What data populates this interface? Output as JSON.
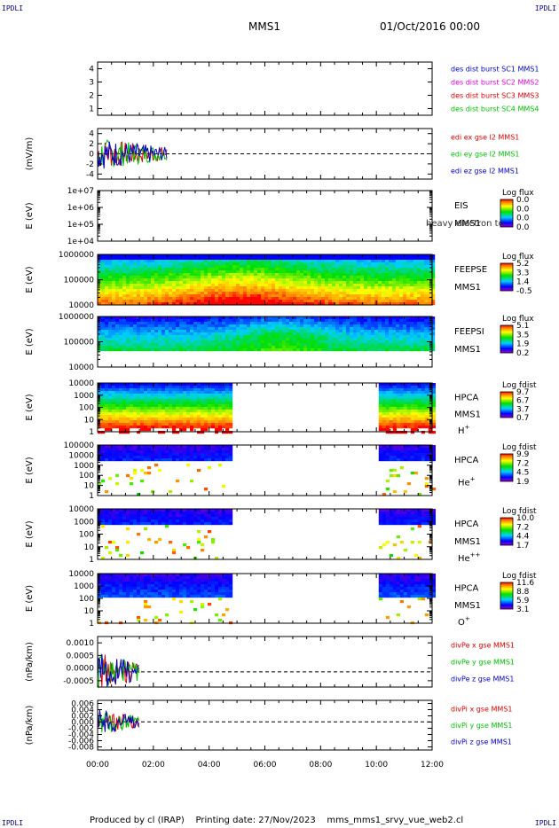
{
  "header": {
    "corner_tl": "IPDLI",
    "corner_tr": "IPDLI",
    "corner_bl": "IPDLI",
    "corner_br": "IPDLI",
    "spacecraft": "MMS1",
    "datetime": "01/Oct/2016 00:00"
  },
  "footer": {
    "produced_by": "Produced by cl (IRAP)",
    "printing_date": "Printing date: 27/Nov/2023",
    "file": "mms_mms1_srvy_vue_web2.cl"
  },
  "colors": {
    "mms1": "#0000c8",
    "mms2": "#e000e0",
    "mms3": "#e00000",
    "mms4": "#00c000",
    "x": "#e00000",
    "y": "#00c000",
    "z": "#0000c8"
  },
  "chart_data": [
    {
      "type": "line",
      "ylim": [
        1,
        4
      ],
      "yticks": [
        "1",
        "2",
        "3",
        "4"
      ],
      "series": [],
      "legend": [
        {
          "text": "des dist burst SC1 MMS1",
          "color": "#0000c8"
        },
        {
          "text": "des dist burst SC2 MMS2",
          "color": "#e000e0"
        },
        {
          "text": "des dist burst SC3 MMS3",
          "color": "#e00000"
        },
        {
          "text": "des dist burst SC4 MMS4",
          "color": "#00c000"
        }
      ]
    },
    {
      "type": "line",
      "ylabel": "(mV/m)",
      "ylim": [
        -4,
        4
      ],
      "yticks": [
        "-4",
        "-2",
        "0",
        "2",
        "4"
      ],
      "x_data_range": [
        "00:00",
        "02:30"
      ],
      "legend": [
        {
          "text": "edi ex gse l2 MMS1",
          "color": "#e00000"
        },
        {
          "text": "edi ey gse l2 MMS1",
          "color": "#00c000"
        },
        {
          "text": "edi ez gse l2 MMS1",
          "color": "#0000c8"
        }
      ]
    },
    {
      "type": "heatmap",
      "ylabel": "E (eV)",
      "yticks": [
        "1e+04",
        "1e+05",
        "1e+06",
        "1e+07"
      ],
      "instrument": "EIS",
      "spacecraft": "MMS1",
      "overlay_text": "heavy electron to",
      "colorbar": {
        "label": "Log flux",
        "ticks": [
          "0.0",
          "0.0",
          "0.0",
          "0.0"
        ]
      }
    },
    {
      "type": "heatmap",
      "ylabel": "E (eV)",
      "yticks": [
        "10000",
        "100000",
        "1000000"
      ],
      "instrument": "FEEPSE",
      "spacecraft": "MMS1",
      "colorbar": {
        "label": "Log flux",
        "ticks": [
          "5.2",
          "3.3",
          "1.4",
          "-0.5"
        ]
      }
    },
    {
      "type": "heatmap",
      "ylabel": "E (eV)",
      "yticks": [
        "10000",
        "100000",
        "1000000"
      ],
      "instrument": "FEEPSI",
      "spacecraft": "MMS1",
      "colorbar": {
        "label": "Log flux",
        "ticks": [
          "5.1",
          "3.5",
          "1.9",
          "0.2"
        ]
      }
    },
    {
      "type": "heatmap",
      "ylabel": "E (eV)",
      "yticks": [
        "1",
        "10",
        "100",
        "1000",
        "10000"
      ],
      "instrument": "HPCA",
      "spacecraft": "MMS1",
      "species": "H",
      "species_sup": "+",
      "data_intervals": [
        [
          "00:00",
          "04:50"
        ],
        [
          "10:05",
          "12:00"
        ]
      ],
      "colorbar": {
        "label": "Log fdist",
        "ticks": [
          "9.7",
          "6.7",
          "3.7",
          "0.7"
        ]
      }
    },
    {
      "type": "heatmap",
      "ylabel": "E (eV)",
      "yticks": [
        "1",
        "10",
        "100",
        "1000",
        "10000",
        "100000"
      ],
      "instrument": "HPCA",
      "species": "He",
      "species_sup": "+",
      "data_intervals": [
        [
          "00:00",
          "04:50"
        ],
        [
          "10:05",
          "12:00"
        ]
      ],
      "colorbar": {
        "label": "Log fdist",
        "ticks": [
          "9.9",
          "7.2",
          "4.5",
          "1.9"
        ]
      }
    },
    {
      "type": "heatmap",
      "ylabel": "E (eV)",
      "yticks": [
        "1",
        "10",
        "100",
        "1000",
        "10000"
      ],
      "instrument": "HPCA",
      "spacecraft": "MMS1",
      "species": "He",
      "species_sup": "++",
      "data_intervals": [
        [
          "00:00",
          "04:50"
        ],
        [
          "10:05",
          "12:00"
        ]
      ],
      "colorbar": {
        "label": "Log fdist",
        "ticks": [
          "10.0",
          "7.2",
          "4.4",
          "1.7"
        ]
      }
    },
    {
      "type": "heatmap",
      "ylabel": "E (eV)",
      "yticks": [
        "1",
        "10",
        "100",
        "1000",
        "10000"
      ],
      "instrument": "HPCA",
      "spacecraft": "MMS1",
      "species": "O",
      "species_sup": "+",
      "data_intervals": [
        [
          "00:00",
          "04:50"
        ],
        [
          "10:05",
          "12:00"
        ]
      ],
      "colorbar": {
        "label": "Log fdist",
        "ticks": [
          "11.6",
          "8.8",
          "5.9",
          "3.1"
        ]
      }
    },
    {
      "type": "line",
      "ylabel": "(nPa/km)",
      "ylim": [
        -0.0006,
        0.0014
      ],
      "yticks": [
        "-0.0005",
        "0.0000",
        "0.0005",
        "0.0010"
      ],
      "x_data_range": [
        "00:00",
        "01:30"
      ],
      "legend": [
        {
          "text": "divPe x gse MMS1",
          "color": "#e00000"
        },
        {
          "text": "divPe y gse MMS1",
          "color": "#00c000"
        },
        {
          "text": "divPe z gse MMS1",
          "color": "#0000c8"
        }
      ]
    },
    {
      "type": "line",
      "ylabel": "(nPa/km)",
      "ylim": [
        -0.0085,
        0.0065
      ],
      "yticks": [
        "-0.008",
        "-0.006",
        "-0.004",
        "-0.002",
        "0.000",
        "0.002",
        "0.004",
        "0.006"
      ],
      "x_data_range": [
        "00:00",
        "01:30"
      ],
      "legend": [
        {
          "text": "divPi x gse MMS1",
          "color": "#e00000"
        },
        {
          "text": "divPi y gse MMS1",
          "color": "#00c000"
        },
        {
          "text": "divPi z gse MMS1",
          "color": "#0000c8"
        }
      ]
    }
  ],
  "xaxis": {
    "ticks": [
      "00:00",
      "02:00",
      "04:00",
      "06:00",
      "08:00",
      "10:00",
      "12:00"
    ],
    "range_hours": [
      0,
      12
    ]
  }
}
